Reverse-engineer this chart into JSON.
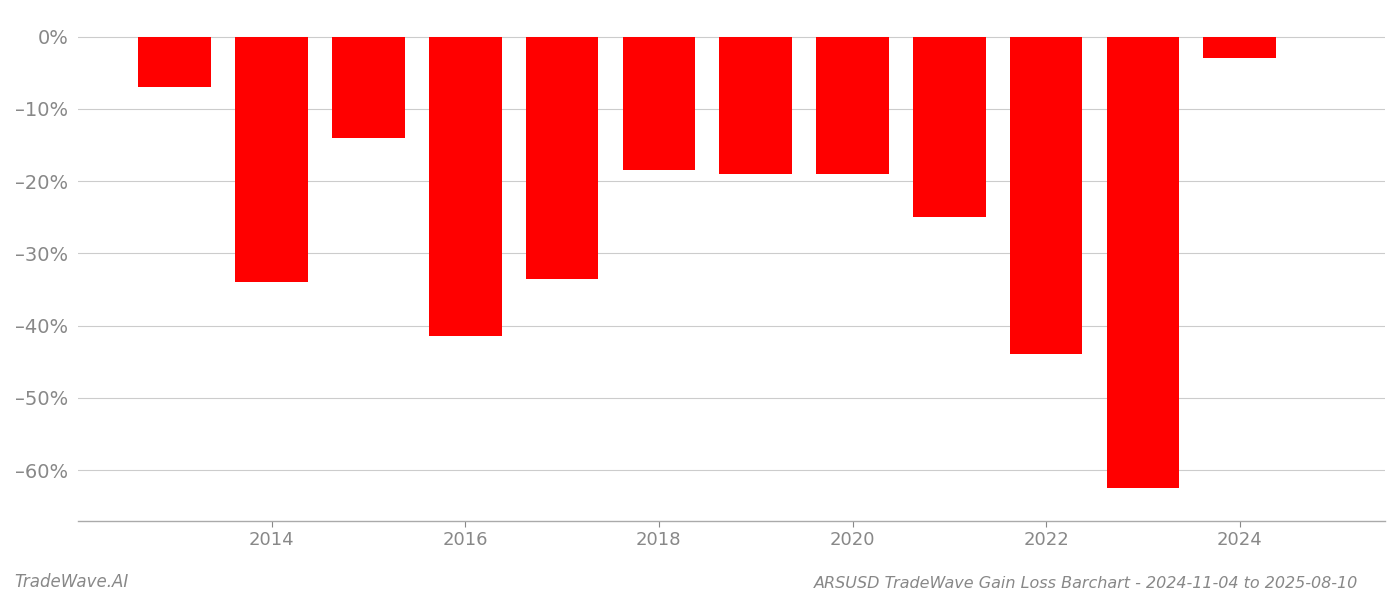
{
  "years": [
    2013,
    2014,
    2015,
    2016,
    2017,
    2018,
    2019,
    2020,
    2021,
    2022,
    2023,
    2024
  ],
  "values": [
    -7.0,
    -34.0,
    -14.0,
    -41.5,
    -33.5,
    -18.5,
    -19.0,
    -19.0,
    -25.0,
    -44.0,
    -62.5,
    -3.0
  ],
  "bar_color": "#ff0000",
  "title": "ARSUSD TradeWave Gain Loss Barchart - 2024-11-04 to 2025-08-10",
  "watermark": "TradeWave.AI",
  "ylim": [
    -67,
    3
  ],
  "yticks": [
    0,
    -10,
    -20,
    -30,
    -40,
    -50,
    -60
  ],
  "ytick_labels": [
    "0%",
    "–10%",
    "–20%",
    "–30%",
    "–40%",
    "–50%",
    "–60%"
  ],
  "background_color": "#ffffff",
  "grid_color": "#cccccc",
  "axis_color": "#aaaaaa",
  "title_fontsize": 11.5,
  "watermark_fontsize": 12,
  "tick_label_color": "#888888",
  "bar_width": 0.75,
  "xlim_left": 2012.0,
  "xlim_right": 2025.5,
  "xtick_positions": [
    2014,
    2016,
    2018,
    2020,
    2022,
    2024
  ]
}
